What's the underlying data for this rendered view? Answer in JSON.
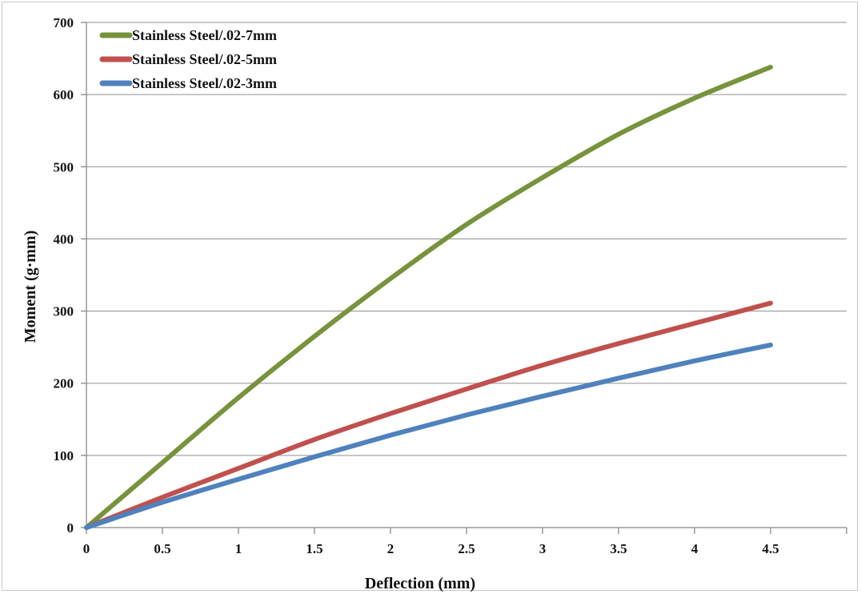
{
  "chart_data": {
    "type": "line",
    "title": "",
    "xlabel": "Deflection (mm)",
    "ylabel": "Moment (g·mm)",
    "xlim": [
      0,
      5
    ],
    "ylim": [
      0,
      700
    ],
    "x_ticks": [
      "0",
      "0.5",
      "1",
      "1.5",
      "2",
      "2.5",
      "3",
      "3.5",
      "4",
      "4.5"
    ],
    "x_tick_values": [
      0,
      0.5,
      1,
      1.5,
      2,
      2.5,
      3,
      3.5,
      4,
      4.5
    ],
    "y_ticks": [
      "0",
      "100",
      "200",
      "300",
      "400",
      "500",
      "600",
      "700"
    ],
    "y_tick_values": [
      0,
      100,
      200,
      300,
      400,
      500,
      600,
      700
    ],
    "grid": "horizontal",
    "legend_position": "top-left",
    "series": [
      {
        "name": "Stainless Steel/.02-7mm",
        "color": "#77933c",
        "x": [
          0,
          0.5,
          1,
          1.5,
          2,
          2.5,
          3,
          3.5,
          4,
          4.5
        ],
        "y": [
          0,
          90,
          180,
          265,
          345,
          420,
          485,
          545,
          595,
          638
        ]
      },
      {
        "name": "Stainless Steel/.02-5mm",
        "color": "#c0504d",
        "x": [
          0,
          0.5,
          1,
          1.5,
          2,
          2.5,
          3,
          3.5,
          4,
          4.5
        ],
        "y": [
          0,
          42,
          82,
          122,
          158,
          192,
          225,
          255,
          283,
          311
        ]
      },
      {
        "name": "Stainless Steel/.02-3mm",
        "color": "#4f81bd",
        "x": [
          0,
          0.5,
          1,
          1.5,
          2,
          2.5,
          3,
          3.5,
          4,
          4.5
        ],
        "y": [
          0,
          35,
          67,
          98,
          128,
          156,
          182,
          207,
          231,
          253
        ]
      }
    ]
  }
}
